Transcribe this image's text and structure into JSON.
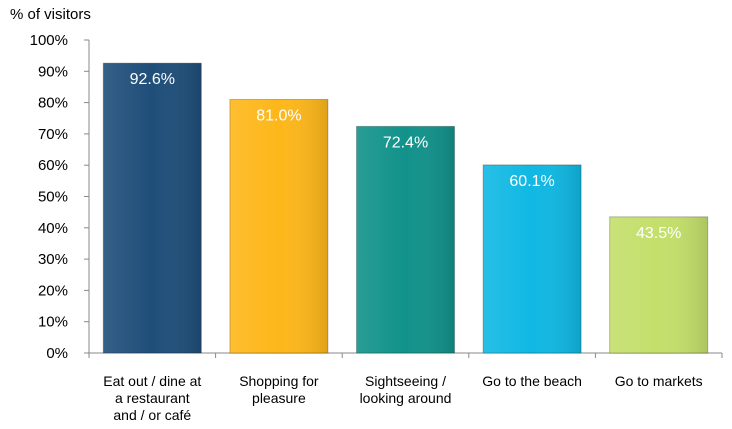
{
  "chart_data": {
    "type": "bar",
    "ylabel": "% of visitors",
    "xlabel": "",
    "ylim": [
      0,
      100
    ],
    "y_tick_labels": [
      "0%",
      "10%",
      "20%",
      "30%",
      "40%",
      "50%",
      "60%",
      "70%",
      "80%",
      "90%",
      "100%"
    ],
    "grid": false,
    "categories": [
      "Eat out / dine at\na restaurant\nand / or café",
      "Shopping for\npleasure",
      "Sightseeing /\nlooking around",
      "Go to the beach",
      "Go to markets"
    ],
    "values": [
      92.6,
      81.0,
      72.4,
      60.1,
      43.5
    ],
    "data_labels": [
      "92.6%",
      "81.0%",
      "72.4%",
      "60.1%",
      "43.5%"
    ],
    "colors": [
      "#1f4e79",
      "#fdb71a",
      "#11928a",
      "#10b8e3",
      "#c4df6b"
    ]
  }
}
